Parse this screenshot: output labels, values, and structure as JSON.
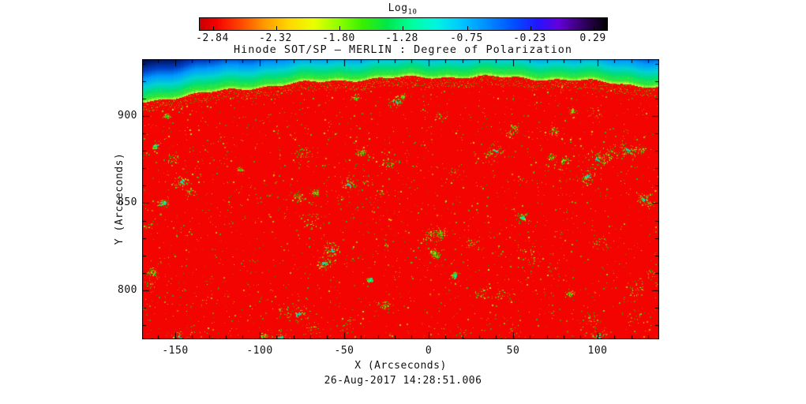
{
  "chart_data": {
    "type": "heatmap",
    "title": "Hinode SOT/SP — MERLIN : Degree of Polarization",
    "xlabel": "X (Arcseconds)",
    "ylabel": "Y (Arcseconds)",
    "caption": "26-Aug-2017  14:28:51.006",
    "x_range": [
      -169.5,
      136.5
    ],
    "y_range": [
      772,
      932.5
    ],
    "x_major_ticks": [
      -150,
      -100,
      -50,
      0,
      50,
      100
    ],
    "y_major_ticks": [
      800,
      850,
      900
    ],
    "minor_tick_step": 10,
    "colorbar": {
      "title_main": "Log",
      "title_sub": "10",
      "tick_labels": [
        "-2.84",
        "-2.32",
        "-1.80",
        "-1.28",
        "-0.75",
        "-0.23",
        "0.29"
      ],
      "tick_values": [
        -2.84,
        -2.32,
        -1.8,
        -1.28,
        -0.75,
        -0.23,
        0.29
      ],
      "range": [
        -2.95,
        0.4
      ],
      "stops": [
        {
          "p": 0.0,
          "c": "#c80000"
        },
        {
          "p": 0.04,
          "c": "#f50000"
        },
        {
          "p": 0.1,
          "c": "#ff4600"
        },
        {
          "p": 0.16,
          "c": "#ff9b00"
        },
        {
          "p": 0.22,
          "c": "#ffd800"
        },
        {
          "p": 0.28,
          "c": "#eaff00"
        },
        {
          "p": 0.34,
          "c": "#91ff00"
        },
        {
          "p": 0.4,
          "c": "#37f000"
        },
        {
          "p": 0.46,
          "c": "#00e64b"
        },
        {
          "p": 0.52,
          "c": "#00ff9b"
        },
        {
          "p": 0.58,
          "c": "#00f5e1"
        },
        {
          "p": 0.64,
          "c": "#00c8ff"
        },
        {
          "p": 0.7,
          "c": "#0091ff"
        },
        {
          "p": 0.77,
          "c": "#0050ff"
        },
        {
          "p": 0.83,
          "c": "#2314ff"
        },
        {
          "p": 0.88,
          "c": "#6400dc"
        },
        {
          "p": 0.93,
          "c": "#3c0078"
        },
        {
          "p": 1.0,
          "c": "#000000"
        }
      ]
    },
    "image": {
      "description": "Solar disk near the limb: low-polarization disk (red, log10 ~ -2.8) speckled with small green magnetic concentrations; above the curved limb the value rises through green, cyan and blue to dark navy at the upper-left corner.",
      "disk_color": "#f40400",
      "limb": {
        "y0": 22,
        "x_apex": 400,
        "curvature": 0.0002
      },
      "sky_stops": [
        [
          0,
          "#ccff44"
        ],
        [
          4,
          "#33e833"
        ],
        [
          12,
          "#00dd77"
        ],
        [
          20,
          "#00d2d2"
        ],
        [
          30,
          "#0099ff"
        ],
        [
          40,
          "#0040c8"
        ],
        [
          50,
          "#001766"
        ],
        [
          62,
          "#000014"
        ]
      ],
      "speckle_colors": [
        "#00cc00",
        "#33dd00",
        "#77dd00",
        "#aaee22",
        "#00bb55",
        "#ffcc00"
      ],
      "clump_core_color": "#00e8c8",
      "seed": 1337
    }
  }
}
